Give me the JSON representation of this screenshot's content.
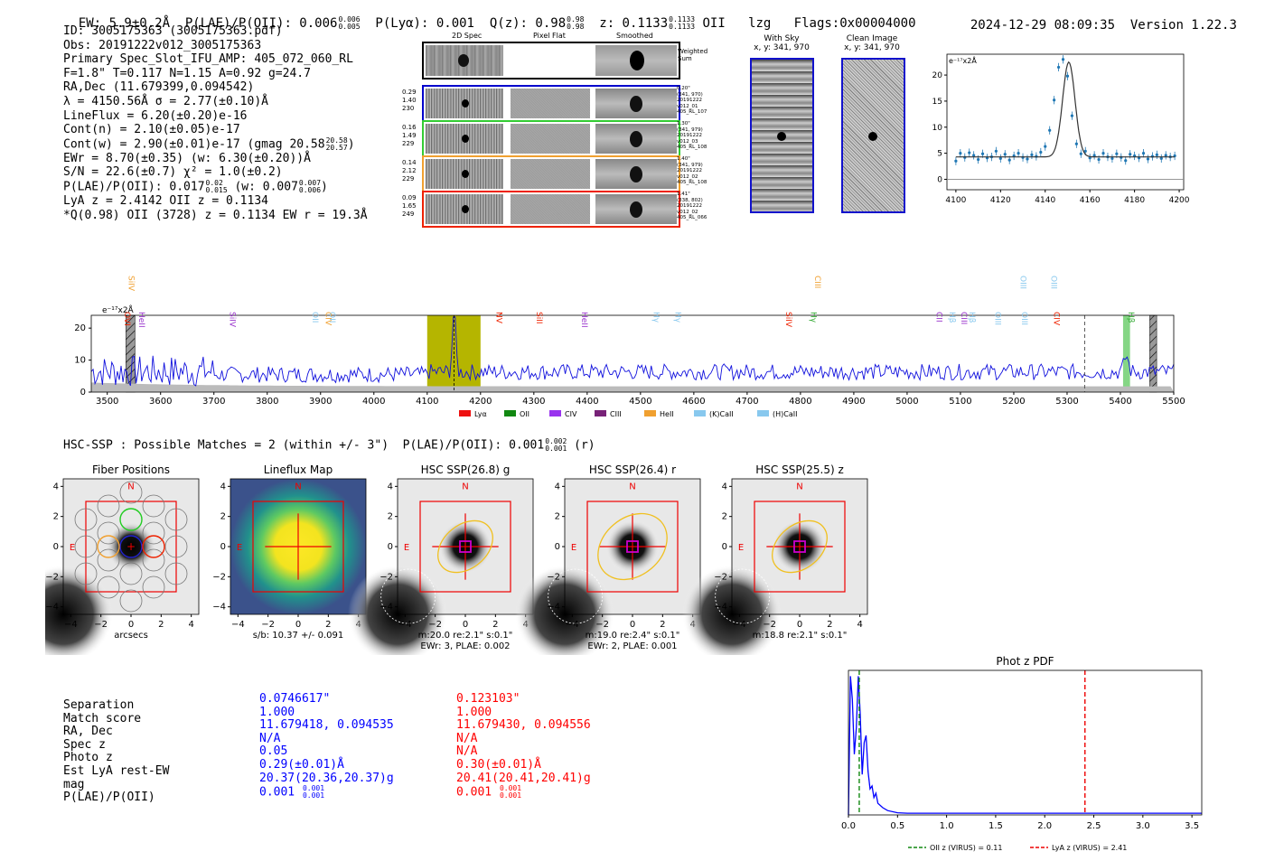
{
  "header": {
    "ew_text": "EW: 5.9±0.2Å",
    "plae_label": "P(LAE)/P(OII): 0.006",
    "plae_hi": "0.006",
    "plae_lo": "0.005",
    "plya": "P(Lyα): 0.001",
    "qz_label": "Q(z): 0.98",
    "qz_hi": "0.98",
    "qz_lo": "0.98",
    "z_label": "z: 0.1133",
    "z_hi": "0.1133",
    "z_lo": "0.1133",
    "z_line": "OII",
    "lzg": "lzg",
    "flags": "Flags:0x00004000",
    "timestamp": "2024-12-29 08:09:35",
    "version": "Version 1.22.3"
  },
  "info": {
    "id": "ID: 3005175363 (3005175363.pdf)",
    "obs": "Obs: 20191222v012_3005175363",
    "primary": "Primary Spec_Slot_IFU_AMP: 405_072_060_RL",
    "fwhm": "F=1.8\"  T=0.117  N=1.15  A=0.92  g=24.7",
    "radec": "RA,Dec (11.679399,0.094542)",
    "lambda": "λ = 4150.56Å   σ = 2.77(±0.10)Å",
    "lineflux": "LineFlux = 6.20(±0.20)e-16",
    "contn": "Cont(n) = 2.10(±0.05)e-17",
    "contw": "Cont(w) = 2.90(±0.01)e-17 (gmag 20.58",
    "contw_hi": "20.58",
    "contw_lo": "20.57",
    "ewr": "EWr = 8.70(±0.35) (w: 6.30(±0.20))Å",
    "sn": "S/N = 22.6(±0.7)  χ² = 1.0(±0.2)",
    "plae": "P(LAE)/P(OII): 0.017",
    "plae_hi": "0.02",
    "plae_lo": "0.015",
    "plae_w": "(w: 0.007",
    "plae_w_hi": "0.007",
    "plae_w_lo": "0.006",
    "lya": "LyA z = 2.4142   OII z = 0.1134",
    "q": "*Q(0.98) OII (3728) z = 0.1134   EW r = 19.3Å"
  },
  "cutouts": {
    "col_2d": "2D Spec",
    "col_flat": "Pixel Flat",
    "col_smooth": "Smoothed",
    "weighted": "Weighted Sum",
    "rows": [
      {
        "left": [
          "0.29",
          "1.40",
          "230"
        ],
        "right": [
          "0.20\"",
          "(341, 970)",
          "20191222",
          "v012_01",
          "405_RL_107"
        ],
        "color": "#0000cc"
      },
      {
        "left": [
          "0.16",
          "1.49",
          "229"
        ],
        "right": [
          "1.30\"",
          "(341, 979)",
          "20191222",
          "v012_03",
          "405_RL_108"
        ],
        "color": "#33cc33"
      },
      {
        "left": [
          "0.14",
          "2.12",
          "229"
        ],
        "right": [
          "1.40\"",
          "(341, 979)",
          "20191222",
          "v012_02",
          "405_RL_108"
        ],
        "color": "#f0a030"
      },
      {
        "left": [
          "0.09",
          "1.65",
          "249"
        ],
        "right": [
          "1.41\"",
          "(338, 802)",
          "20191222",
          "v012_02",
          "405_RL_066"
        ],
        "color": "#ee2200"
      }
    ]
  },
  "sky": {
    "with_sky": "With Sky",
    "with_sky_xy": "x, y: 341, 970",
    "clean": "Clean Image",
    "clean_xy": "x, y: 341, 970"
  },
  "zoom_chart": {
    "type": "line",
    "ylabel": "e⁻¹⁷x2Å",
    "xlim": [
      4096,
      4202
    ],
    "ylim": [
      -2,
      24
    ],
    "xticks": [
      4100,
      4120,
      4140,
      4160,
      4180,
      4200
    ],
    "yticks": [
      0,
      5,
      10,
      15,
      20
    ],
    "x": [
      4100,
      4102,
      4104,
      4106,
      4108,
      4110,
      4112,
      4114,
      4116,
      4118,
      4120,
      4122,
      4124,
      4126,
      4128,
      4130,
      4132,
      4134,
      4136,
      4138,
      4140,
      4142,
      4144,
      4146,
      4148,
      4150,
      4152,
      4154,
      4156,
      4158,
      4160,
      4162,
      4164,
      4166,
      4168,
      4170,
      4172,
      4174,
      4176,
      4178,
      4180,
      4182,
      4184,
      4186,
      4188,
      4190,
      4192,
      4194,
      4196,
      4198
    ],
    "y": [
      3.5,
      5.0,
      4.2,
      5.1,
      4.6,
      3.8,
      4.9,
      4.1,
      4.3,
      5.4,
      4.0,
      4.8,
      3.7,
      4.5,
      5.0,
      4.2,
      3.9,
      4.7,
      4.4,
      5.2,
      6.3,
      9.4,
      15.2,
      21.5,
      23.0,
      19.8,
      12.2,
      6.8,
      4.9,
      5.4,
      4.1,
      4.6,
      3.8,
      5.0,
      4.3,
      4.0,
      4.9,
      4.2,
      3.6,
      4.8,
      4.5,
      4.1,
      5.0,
      3.9,
      4.4,
      4.7,
      4.0,
      4.6,
      4.3,
      4.5
    ],
    "fit": {
      "base": 4.3,
      "amp": 18.2,
      "mu": 4150.56,
      "sigma": 2.77
    }
  },
  "full_spec": {
    "type": "line",
    "ylabel": "e⁻¹⁷x2Å",
    "xlim": [
      3470,
      5500
    ],
    "ylim": [
      0,
      24
    ],
    "xticks": [
      3500,
      3600,
      3700,
      3800,
      3900,
      4000,
      4100,
      4200,
      4300,
      4400,
      4500,
      4600,
      4700,
      4800,
      4900,
      5000,
      5100,
      5200,
      5300,
      5400,
      5500
    ],
    "yticks": [
      0,
      10,
      20
    ],
    "highlight": [
      4100,
      4200
    ],
    "peak_x": 4150.5,
    "peak_y": 23.0,
    "dashed_x": 5333,
    "green_band": [
      5405,
      5418
    ],
    "hatched": [
      [
        3535,
        3552
      ],
      [
        5455,
        5468
      ]
    ],
    "lines_top": [
      {
        "label": "SiIV",
        "x": 3535,
        "color": "#f0a030",
        "row": 0
      },
      {
        "label": "OVI",
        "x": 3528,
        "color": "#ee2200",
        "row": 1
      },
      {
        "label": "HeII",
        "x": 3555,
        "color": "#9933cc",
        "row": 1
      },
      {
        "label": "SiIV",
        "x": 3725,
        "color": "#9933cc",
        "row": 1
      },
      {
        "label": "OII",
        "x": 3880,
        "color": "#88c8ee",
        "row": 1
      },
      {
        "label": "CIV",
        "x": 3905,
        "color": "#f0a030",
        "row": 1
      },
      {
        "label": "OII",
        "x": 3912,
        "color": "#88c8ee",
        "row": 1
      },
      {
        "label": "NV",
        "x": 4225,
        "color": "#ee2200",
        "row": 1
      },
      {
        "label": "SiII",
        "x": 4300,
        "color": "#ee2200",
        "row": 1
      },
      {
        "label": "HeII",
        "x": 4385,
        "color": "#9933cc",
        "row": 1
      },
      {
        "label": "Hγ",
        "x": 4520,
        "color": "#88c8ee",
        "row": 1
      },
      {
        "label": "Hγ",
        "x": 4560,
        "color": "#88c8ee",
        "row": 1
      },
      {
        "label": "SiIV",
        "x": 4768,
        "color": "#ee2200",
        "row": 1
      },
      {
        "label": "Hγ",
        "x": 4815,
        "color": "#33aa33",
        "row": 1
      },
      {
        "label": "CIII",
        "x": 4822,
        "color": "#f0a030",
        "row": 0
      },
      {
        "label": "CII",
        "x": 5050,
        "color": "#9933cc",
        "row": 1
      },
      {
        "label": "Hβ",
        "x": 5075,
        "color": "#88c8ee",
        "row": 1
      },
      {
        "label": "CIII",
        "x": 5097,
        "color": "#9933cc",
        "row": 1
      },
      {
        "label": "Hβ",
        "x": 5112,
        "color": "#88c8ee",
        "row": 1
      },
      {
        "label": "OIII",
        "x": 5160,
        "color": "#88c8ee",
        "row": 1
      },
      {
        "label": "OIII",
        "x": 5208,
        "color": "#88c8ee",
        "row": 0
      },
      {
        "label": "OIII",
        "x": 5210,
        "color": "#88c8ee",
        "row": 1
      },
      {
        "label": "OIII",
        "x": 5265,
        "color": "#88c8ee",
        "row": 0
      },
      {
        "label": "CIV",
        "x": 5270,
        "color": "#ee2200",
        "row": 1
      },
      {
        "label": "Hβ",
        "x": 5410,
        "color": "#33aa33",
        "row": 1
      }
    ],
    "legend": [
      {
        "label": "Lyα",
        "color": "#ee1111"
      },
      {
        "label": "OII",
        "color": "#118811"
      },
      {
        "label": "CIV",
        "color": "#9933ee"
      },
      {
        "label": "CIII",
        "color": "#772277"
      },
      {
        "label": "HeII",
        "color": "#f0a030"
      },
      {
        "label": "(K)CaII",
        "color": "#88c8ee"
      },
      {
        "label": "(H)CaII",
        "color": "#88c8ee"
      }
    ]
  },
  "hsc": {
    "title": "HSC-SSP : Possible Matches = 2 (within +/- 3\")  P(LAE)/P(OII): 0.001",
    "hi": "0.002",
    "lo": "0.001",
    "band": "(r)",
    "panels": [
      {
        "title": "Fiber Positions",
        "caption1": "arcsecs",
        "caption2": ""
      },
      {
        "title": "Lineflux Map",
        "caption1": "s/b: 10.37 +/- 0.091",
        "caption2": ""
      },
      {
        "title": "HSC SSP(26.8) g",
        "caption1": "m:20.0  re:2.1\"  s:0.1\"",
        "caption2": "EWr: 3, PLAE: 0.002"
      },
      {
        "title": "HSC SSP(26.4) r",
        "caption1": "m:19.0  re:2.4\"  s:0.1\"",
        "caption2": "EWr: 2, PLAE: 0.001"
      },
      {
        "title": "HSC SSP(25.5) z",
        "caption1": "m:18.8  re:2.1\"  s:0.1\"",
        "caption2": ""
      }
    ],
    "ticks": [
      "−4",
      "−2",
      "0",
      "2",
      "4"
    ],
    "n_label": "N",
    "e_label": "E"
  },
  "table": {
    "labels": [
      "Separation",
      "Match score",
      "RA, Dec",
      "Spec z",
      "Photo z",
      "Est LyA rest-EW",
      "mag",
      "P(LAE)/P(OII)"
    ],
    "col1": [
      "0.0746617\"",
      "1.000",
      "11.679418, 0.094535",
      "N/A",
      "0.05",
      "0.29(±0.01)Å",
      "20.37(20.36,20.37)g",
      "0.001"
    ],
    "col1_hi": "0.001",
    "col1_lo": "0.001",
    "col2": [
      "0.123103\"",
      "1.000",
      "11.679430, 0.094556",
      "N/A",
      "N/A",
      "0.30(±0.01)Å",
      "20.41(20.41,20.41)g",
      "0.001"
    ],
    "col2_hi": "0.001",
    "col2_lo": "0.001"
  },
  "pdf_chart": {
    "type": "line",
    "title": "Phot z PDF",
    "xlim": [
      0,
      3.6
    ],
    "xticks": [
      0.0,
      0.5,
      1.0,
      1.5,
      2.0,
      2.5,
      3.0,
      3.5
    ],
    "xtick_labels": [
      "0.0",
      "0.5",
      "1.0",
      "1.5",
      "2.0",
      "2.5",
      "3.0",
      "3.5"
    ],
    "oii_z": 0.11,
    "lya_z": 2.41,
    "legend_oii": "OII z (VIRUS) = 0.11",
    "legend_lya": "LyA z (VIRUS) = 2.41",
    "x": [
      0.0,
      0.02,
      0.04,
      0.06,
      0.08,
      0.1,
      0.12,
      0.14,
      0.16,
      0.18,
      0.2,
      0.22,
      0.24,
      0.26,
      0.28,
      0.3,
      0.35,
      0.4,
      0.5,
      0.6,
      0.8,
      1.0,
      1.5,
      2.0,
      2.5,
      3.0,
      3.5,
      3.6
    ],
    "y": [
      0.0,
      0.96,
      0.8,
      0.42,
      0.6,
      0.96,
      0.7,
      0.28,
      0.5,
      0.55,
      0.3,
      0.18,
      0.2,
      0.12,
      0.15,
      0.08,
      0.05,
      0.03,
      0.015,
      0.012,
      0.012,
      0.012,
      0.012,
      0.012,
      0.012,
      0.012,
      0.012,
      0.012
    ]
  }
}
